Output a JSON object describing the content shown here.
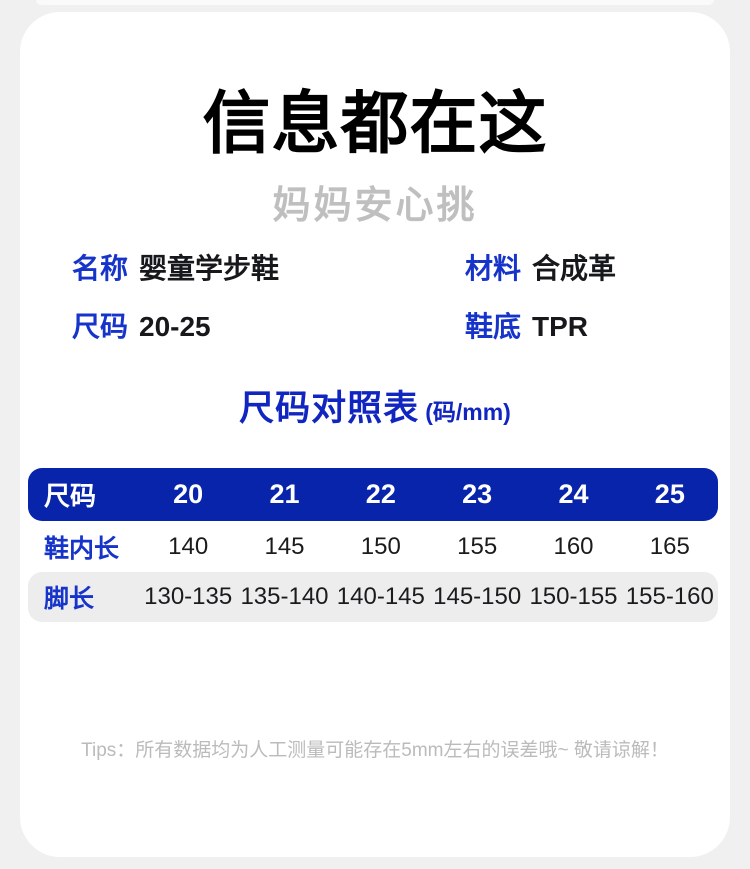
{
  "page": {
    "title": "信息都在这",
    "subtitle": "妈妈安心挑",
    "tips": "Tips：所有数据均为人工测量可能存在5mm左右的误差哦~ 敬请谅解！"
  },
  "colors": {
    "accent_blue": "#1634c9",
    "table_header_blue": "#0824ab",
    "alt_row_gray": "#ededee",
    "page_background": "#f0f0f1"
  },
  "specs": {
    "name": {
      "label": "名称",
      "value": "婴童学步鞋"
    },
    "material": {
      "label": "材料",
      "value": "合成革"
    },
    "size": {
      "label": "尺码",
      "value": "20-25"
    },
    "sole": {
      "label": "鞋底",
      "value": "TPR"
    }
  },
  "size_chart": {
    "heading": "尺码对照表",
    "unit": "(码/mm)",
    "header": {
      "label": "尺码",
      "values": [
        "20",
        "21",
        "22",
        "23",
        "24",
        "25"
      ]
    },
    "inner_length": {
      "label": "鞋内长",
      "values": [
        "140",
        "145",
        "150",
        "155",
        "160",
        "165"
      ]
    },
    "foot_length": {
      "label": "脚长",
      "values": [
        "130-135",
        "135-140",
        "140-145",
        "145-150",
        "150-155",
        "155-160"
      ]
    }
  }
}
